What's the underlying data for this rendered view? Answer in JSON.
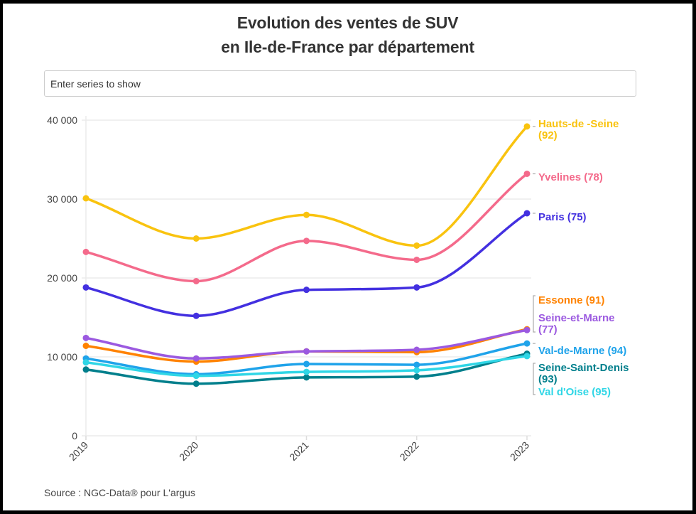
{
  "header": {
    "title_line1": "Evolution des ventes de SUV",
    "title_line2": "en Ile-de-France par département"
  },
  "search": {
    "placeholder": "Enter series to show",
    "value": ""
  },
  "footer": {
    "source": "Source : NGC-Data® pour L'argus"
  },
  "chart_data": {
    "type": "line",
    "title": "Evolution des ventes de SUV en Ile-de-France par département",
    "xlabel": "",
    "ylabel": "",
    "x": [
      "2019",
      "2020",
      "2021",
      "2022",
      "2023"
    ],
    "ylim": [
      0,
      40000
    ],
    "yticks": [
      0,
      10000,
      20000,
      30000,
      40000
    ],
    "ytick_labels": [
      "0",
      "10 000",
      "20 000",
      "30 000",
      "40 000"
    ],
    "grid": true,
    "legend": "direct labels at line ends (right)",
    "series": [
      {
        "name": "Hauts-de -Seine (92)",
        "label_lines": [
          "Hauts-de -Seine",
          "(92)"
        ],
        "color": "#f9c30f",
        "values": [
          30100,
          25000,
          28000,
          24100,
          39200
        ]
      },
      {
        "name": "Yvelines (78)",
        "label_lines": [
          "Yvelines (78)"
        ],
        "color": "#f46a8b",
        "values": [
          23300,
          19600,
          24700,
          22300,
          33200
        ]
      },
      {
        "name": "Paris (75)",
        "label_lines": [
          "Paris (75)"
        ],
        "color": "#4330e0",
        "values": [
          18800,
          15200,
          18500,
          18800,
          28200
        ]
      },
      {
        "name": "Essonne (91)",
        "label_lines": [
          "Essonne (91)"
        ],
        "color": "#ff8200",
        "values": [
          11400,
          9400,
          10700,
          10600,
          13500
        ]
      },
      {
        "name": "Seine-et-Marne (77)",
        "label_lines": [
          "Seine-et-Marne",
          "(77)"
        ],
        "color": "#9b59e0",
        "values": [
          12400,
          9800,
          10700,
          10900,
          13400
        ]
      },
      {
        "name": "Val-de-Marne (94)",
        "label_lines": [
          "Val-de-Marne (94)"
        ],
        "color": "#1fa3ea",
        "values": [
          9800,
          7800,
          9100,
          9000,
          11700
        ]
      },
      {
        "name": "Seine-Saint-Denis (93)",
        "label_lines": [
          "Seine-Saint-Denis",
          "(93)"
        ],
        "color": "#007f8c",
        "values": [
          8400,
          6600,
          7400,
          7500,
          10400
        ]
      },
      {
        "name": "Val d'Oise (95)",
        "label_lines": [
          "Val d'Oise (95)"
        ],
        "color": "#2fd6e6",
        "values": [
          9300,
          7600,
          8100,
          8300,
          10100
        ]
      }
    ]
  }
}
